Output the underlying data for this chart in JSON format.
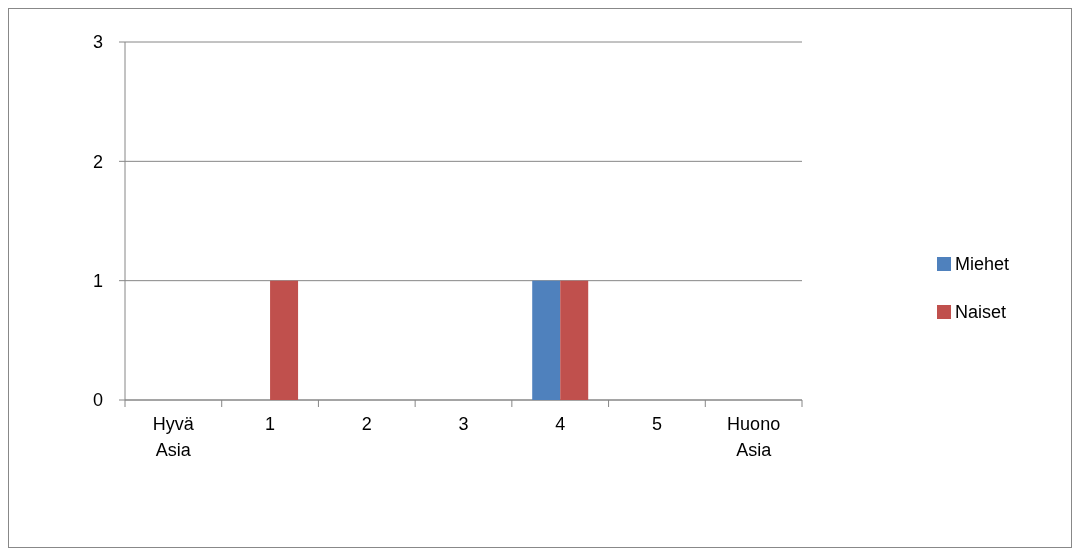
{
  "chart_data": {
    "type": "bar",
    "categories": [
      "Hyvä Asia",
      "1",
      "2",
      "3",
      "4",
      "5",
      "Huono Asia"
    ],
    "series": [
      {
        "name": "Miehet",
        "color": "#4f81bd",
        "values": [
          0,
          0,
          0,
          0,
          1,
          0,
          0
        ]
      },
      {
        "name": "Naiset",
        "color": "#c0504d",
        "values": [
          0,
          1,
          0,
          0,
          1,
          0,
          0
        ]
      }
    ],
    "ylim": [
      0,
      3
    ],
    "yticks": [
      0,
      1,
      2,
      3
    ],
    "grid": "y",
    "legend": "right"
  }
}
